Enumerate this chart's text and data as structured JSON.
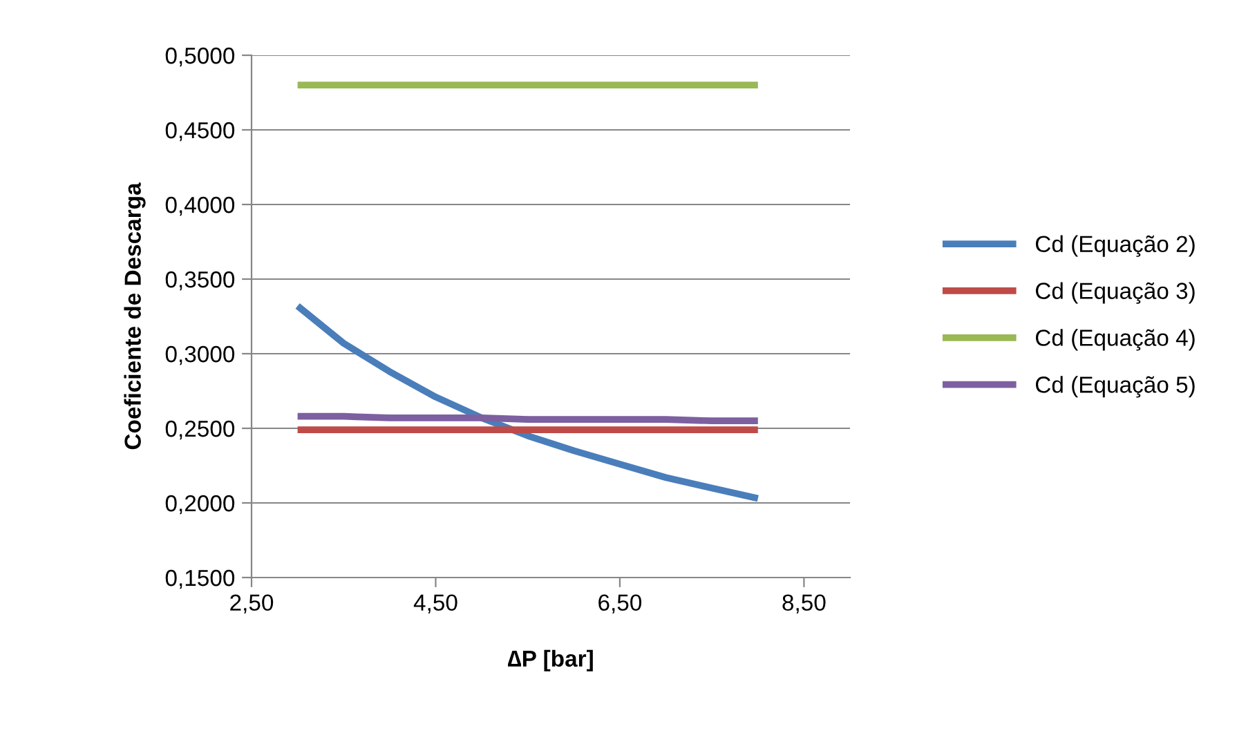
{
  "chart_data": {
    "type": "line",
    "xlabel": "∆P [bar]",
    "ylabel": "Coeficiente de Descarga",
    "xlim": [
      2.5,
      9.0
    ],
    "xticks": [
      {
        "value": 2.5,
        "label": "2,50"
      },
      {
        "value": 4.5,
        "label": "4,50"
      },
      {
        "value": 6.5,
        "label": "6,50"
      },
      {
        "value": 8.5,
        "label": "8,50"
      }
    ],
    "ylim": [
      0.15,
      0.5
    ],
    "yticks": [
      {
        "value": 0.15,
        "label": "0,1500"
      },
      {
        "value": 0.2,
        "label": "0,2000"
      },
      {
        "value": 0.25,
        "label": "0,2500"
      },
      {
        "value": 0.3,
        "label": "0,3000"
      },
      {
        "value": 0.35,
        "label": "0,3500"
      },
      {
        "value": 0.4,
        "label": "0,4000"
      },
      {
        "value": 0.45,
        "label": "0,4500"
      },
      {
        "value": 0.5,
        "label": "0,5000"
      }
    ],
    "grid": "y",
    "legend": "right",
    "marker": "none",
    "line_style": "solid",
    "x": [
      3.0,
      3.5,
      4.0,
      4.5,
      5.0,
      5.5,
      6.0,
      6.5,
      7.0,
      7.5,
      8.0
    ],
    "series": [
      {
        "name": "Cd (Equação 2)",
        "color": "#4a7ebb",
        "values": [
          0.332,
          0.307,
          0.288,
          0.271,
          0.257,
          0.245,
          0.235,
          0.226,
          0.217,
          0.21,
          0.203
        ]
      },
      {
        "name": "Cd (Equação 3)",
        "color": "#be4b48",
        "values": [
          0.249,
          0.249,
          0.249,
          0.249,
          0.249,
          0.249,
          0.249,
          0.249,
          0.249,
          0.249,
          0.249
        ]
      },
      {
        "name": "Cd (Equação 4)",
        "color": "#98b954",
        "values": [
          0.48,
          0.48,
          0.48,
          0.48,
          0.48,
          0.48,
          0.48,
          0.48,
          0.48,
          0.48,
          0.48
        ]
      },
      {
        "name": "Cd (Equação 5)",
        "color": "#7d60a0",
        "values": [
          0.258,
          0.258,
          0.257,
          0.257,
          0.257,
          0.256,
          0.256,
          0.256,
          0.256,
          0.255,
          0.255
        ]
      }
    ]
  }
}
